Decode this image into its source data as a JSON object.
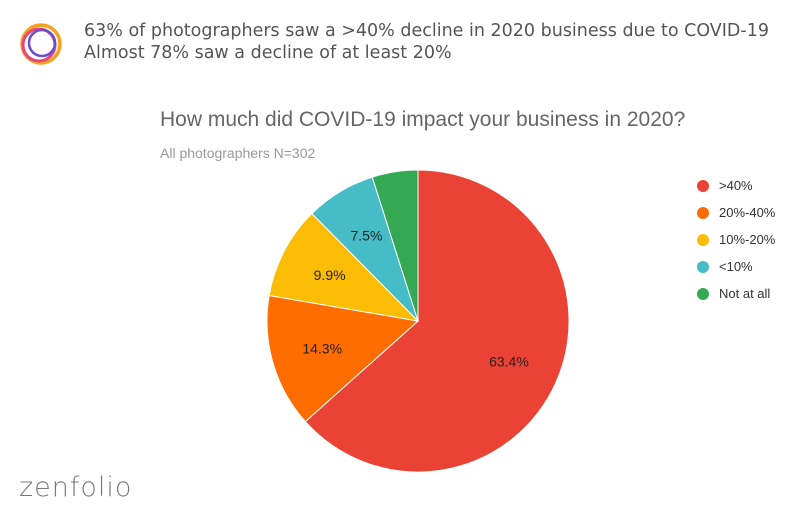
{
  "headline": {
    "line1": "63% of photographers saw a >40% decline in 2020 business due to COVID-19",
    "line2": "Almost 78% saw a decline of at least 20%"
  },
  "brand": {
    "name": "zenfolio",
    "logo_colors": [
      "#f4a21e",
      "#e8457a",
      "#6a4fc8"
    ]
  },
  "chart_data": {
    "type": "pie",
    "title": "How much did COVID-19 impact your business in 2020?",
    "subtitle": "All photographers N=302",
    "legend_position": "right",
    "slices": [
      {
        "label": ">40%",
        "value": 63.4,
        "display": "63.4%",
        "color": "#ea4335"
      },
      {
        "label": "20%-40%",
        "value": 14.3,
        "display": "14.3%",
        "color": "#ff6d01"
      },
      {
        "label": "10%-20%",
        "value": 9.9,
        "display": "9.9%",
        "color": "#fbbc04"
      },
      {
        "label": "<10%",
        "value": 7.5,
        "display": "7.5%",
        "color": "#46bdc6"
      },
      {
        "label": "Not at all",
        "value": 4.9,
        "display": "",
        "color": "#34a853"
      }
    ]
  }
}
